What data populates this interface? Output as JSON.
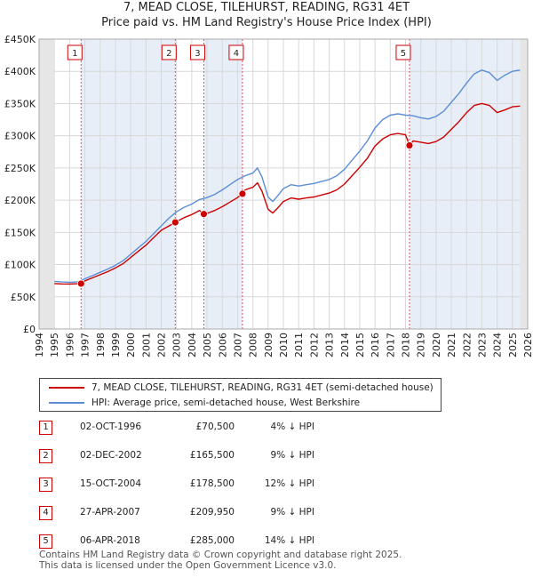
{
  "title_lines": [
    "7, MEAD CLOSE, TILEHURST, READING, RG31 4ET",
    "Price paid vs. HM Land Registry's House Price Index (HPI)"
  ],
  "legend": {
    "sales_label": "7, MEAD CLOSE, TILEHURST, READING, RG31 4ET (semi-detached house)",
    "hpi_label": "HPI: Average price, semi-detached house, West Berkshire"
  },
  "colors": {
    "sales": "#cc0000",
    "hpi": "#5b8ed6",
    "band": "#e8eef8",
    "marker_box": "#cc0000"
  },
  "sales_table": [
    {
      "num": "1",
      "date": "02-OCT-1996",
      "price": "£70,500",
      "hpi": "4% ↓ HPI"
    },
    {
      "num": "2",
      "date": "02-DEC-2002",
      "price": "£165,500",
      "hpi": "9% ↓ HPI"
    },
    {
      "num": "3",
      "date": "15-OCT-2004",
      "price": "£178,500",
      "hpi": "12% ↓ HPI"
    },
    {
      "num": "4",
      "date": "27-APR-2007",
      "price": "£209,950",
      "hpi": "9% ↓ HPI"
    },
    {
      "num": "5",
      "date": "06-APR-2018",
      "price": "£285,000",
      "hpi": "14% ↓ HPI"
    }
  ],
  "footer": [
    "Contains HM Land Registry data © Crown copyright and database right 2025.",
    "This data is licensed under the Open Government Licence v3.0."
  ],
  "chart_data": {
    "type": "line",
    "title": "7, MEAD CLOSE, TILEHURST, READING, RG31 4ET — Price paid vs. HM Land Registry's House Price Index (HPI)",
    "xlabel": "",
    "ylabel": "",
    "xlim": [
      1994,
      2026
    ],
    "ylim": [
      0,
      450000
    ],
    "y_ticks": [
      0,
      50000,
      100000,
      150000,
      200000,
      250000,
      300000,
      350000,
      400000,
      450000
    ],
    "y_tick_labels": [
      "£0",
      "£50K",
      "£100K",
      "£150K",
      "£200K",
      "£250K",
      "£300K",
      "£350K",
      "£400K",
      "£450K"
    ],
    "x_ticks": [
      1994,
      1995,
      1996,
      1997,
      1998,
      1999,
      2000,
      2001,
      2002,
      2003,
      2004,
      2005,
      2006,
      2007,
      2008,
      2009,
      2010,
      2011,
      2012,
      2013,
      2014,
      2015,
      2016,
      2017,
      2018,
      2019,
      2020,
      2021,
      2022,
      2023,
      2024,
      2025,
      2026
    ],
    "data_start": 1995.0,
    "data_end": 2025.5,
    "series": [
      {
        "name": "HPI: Average price, semi-detached house, West Berkshire",
        "color": "#5b8ed6",
        "points": [
          [
            1995.0,
            74000
          ],
          [
            1995.5,
            73000
          ],
          [
            1996.0,
            72500
          ],
          [
            1996.5,
            73000
          ],
          [
            1997.0,
            78000
          ],
          [
            1997.5,
            83000
          ],
          [
            1998.0,
            88000
          ],
          [
            1998.5,
            93000
          ],
          [
            1999.0,
            99000
          ],
          [
            1999.5,
            106000
          ],
          [
            2000.0,
            116000
          ],
          [
            2000.5,
            126000
          ],
          [
            2001.0,
            136000
          ],
          [
            2001.5,
            148000
          ],
          [
            2002.0,
            160000
          ],
          [
            2002.5,
            172000
          ],
          [
            2003.0,
            182000
          ],
          [
            2003.5,
            189000
          ],
          [
            2004.0,
            194000
          ],
          [
            2004.5,
            201000
          ],
          [
            2005.0,
            204000
          ],
          [
            2005.5,
            209000
          ],
          [
            2006.0,
            216000
          ],
          [
            2006.5,
            224000
          ],
          [
            2007.0,
            232000
          ],
          [
            2007.5,
            238000
          ],
          [
            2008.0,
            242000
          ],
          [
            2008.3,
            250000
          ],
          [
            2008.6,
            236000
          ],
          [
            2009.0,
            205000
          ],
          [
            2009.3,
            198000
          ],
          [
            2009.6,
            206000
          ],
          [
            2010.0,
            218000
          ],
          [
            2010.5,
            224000
          ],
          [
            2011.0,
            222000
          ],
          [
            2011.5,
            224000
          ],
          [
            2012.0,
            226000
          ],
          [
            2012.5,
            229000
          ],
          [
            2013.0,
            232000
          ],
          [
            2013.5,
            238000
          ],
          [
            2014.0,
            248000
          ],
          [
            2014.5,
            262000
          ],
          [
            2015.0,
            276000
          ],
          [
            2015.5,
            292000
          ],
          [
            2016.0,
            312000
          ],
          [
            2016.5,
            325000
          ],
          [
            2017.0,
            332000
          ],
          [
            2017.5,
            334000
          ],
          [
            2018.0,
            332000
          ],
          [
            2018.5,
            331000
          ],
          [
            2019.0,
            328000
          ],
          [
            2019.5,
            326000
          ],
          [
            2020.0,
            330000
          ],
          [
            2020.5,
            338000
          ],
          [
            2021.0,
            352000
          ],
          [
            2021.5,
            366000
          ],
          [
            2022.0,
            382000
          ],
          [
            2022.5,
            396000
          ],
          [
            2023.0,
            402000
          ],
          [
            2023.5,
            398000
          ],
          [
            2024.0,
            386000
          ],
          [
            2024.5,
            394000
          ],
          [
            2025.0,
            400000
          ],
          [
            2025.5,
            402000
          ]
        ]
      },
      {
        "name": "7, MEAD CLOSE, TILEHURST, READING, RG31 4ET (semi-detached house)",
        "color": "#cc0000",
        "points": [
          [
            1995.0,
            70500
          ],
          [
            1995.5,
            70000
          ],
          [
            1996.0,
            69800
          ],
          [
            1996.5,
            70200
          ],
          [
            1996.75,
            70500
          ],
          [
            1997.0,
            74800
          ],
          [
            1997.5,
            79500
          ],
          [
            1998.0,
            84300
          ],
          [
            1998.5,
            89000
          ],
          [
            1999.0,
            94800
          ],
          [
            1999.5,
            101500
          ],
          [
            2000.0,
            111000
          ],
          [
            2000.5,
            120700
          ],
          [
            2001.0,
            130200
          ],
          [
            2001.5,
            141700
          ],
          [
            2002.0,
            153200
          ],
          [
            2002.5,
            160000
          ],
          [
            2002.92,
            165500
          ],
          [
            2003.0,
            166600
          ],
          [
            2003.5,
            173000
          ],
          [
            2004.0,
            177600
          ],
          [
            2004.5,
            184000
          ],
          [
            2004.79,
            178500
          ],
          [
            2005.0,
            179500
          ],
          [
            2005.5,
            184000
          ],
          [
            2006.0,
            190000
          ],
          [
            2006.5,
            197000
          ],
          [
            2007.0,
            204000
          ],
          [
            2007.32,
            209950
          ],
          [
            2007.5,
            216000
          ],
          [
            2008.0,
            220000
          ],
          [
            2008.3,
            227000
          ],
          [
            2008.6,
            214000
          ],
          [
            2009.0,
            186000
          ],
          [
            2009.3,
            180000
          ],
          [
            2009.6,
            187000
          ],
          [
            2010.0,
            198000
          ],
          [
            2010.5,
            203500
          ],
          [
            2011.0,
            201500
          ],
          [
            2011.5,
            203500
          ],
          [
            2012.0,
            205000
          ],
          [
            2012.5,
            208000
          ],
          [
            2013.0,
            211000
          ],
          [
            2013.5,
            216000
          ],
          [
            2014.0,
            225000
          ],
          [
            2014.5,
            238000
          ],
          [
            2015.0,
            251000
          ],
          [
            2015.5,
            265000
          ],
          [
            2016.0,
            284000
          ],
          [
            2016.5,
            295000
          ],
          [
            2017.0,
            301500
          ],
          [
            2017.5,
            303500
          ],
          [
            2018.0,
            301500
          ],
          [
            2018.26,
            285000
          ],
          [
            2018.5,
            292000
          ],
          [
            2019.0,
            290000
          ],
          [
            2019.5,
            288000
          ],
          [
            2020.0,
            291000
          ],
          [
            2020.5,
            298000
          ],
          [
            2021.0,
            310000
          ],
          [
            2021.5,
            322000
          ],
          [
            2022.0,
            336000
          ],
          [
            2022.5,
            347000
          ],
          [
            2023.0,
            350000
          ],
          [
            2023.5,
            347000
          ],
          [
            2024.0,
            336000
          ],
          [
            2024.5,
            340000
          ],
          [
            2025.0,
            345000
          ],
          [
            2025.5,
            346000
          ]
        ]
      }
    ],
    "sale_markers": [
      {
        "label": "1",
        "x": 1996.75,
        "y": 70500
      },
      {
        "label": "2",
        "x": 2002.92,
        "y": 165500
      },
      {
        "label": "3",
        "x": 2004.79,
        "y": 178500
      },
      {
        "label": "4",
        "x": 2007.32,
        "y": 209950
      },
      {
        "label": "5",
        "x": 2018.26,
        "y": 285000
      }
    ],
    "shaded_bands": [
      [
        1996.75,
        2002.92
      ],
      [
        2004.79,
        2007.32
      ],
      [
        2018.26,
        2025.5
      ]
    ]
  }
}
